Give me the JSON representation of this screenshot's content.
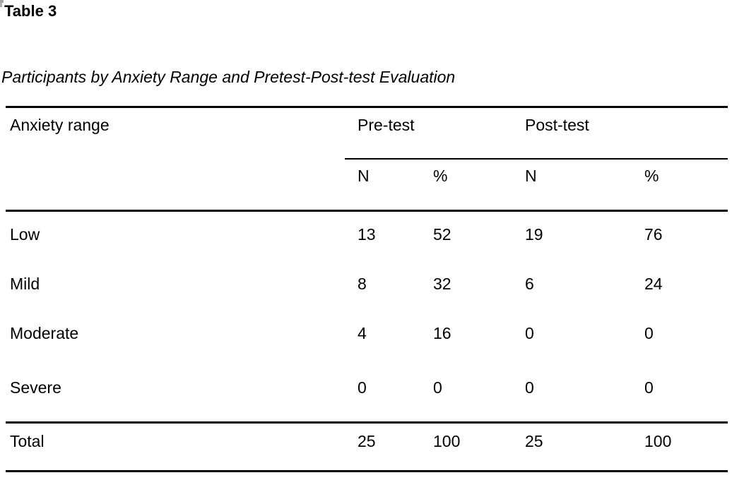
{
  "document": {
    "table_label": "Table 3",
    "caption": "Participants by Anxiety Range and Pretest-Post-test Evaluation"
  },
  "table": {
    "stub_header": "Anxiety range",
    "group_headers": {
      "pretest": "Pre-test",
      "posttest": "Post-test"
    },
    "sub_headers": [
      "N",
      "%",
      "N",
      "%"
    ],
    "rows": [
      {
        "label": "Low",
        "values": [
          "13",
          "52",
          "19",
          "76"
        ]
      },
      {
        "label": "Mild",
        "values": [
          "8",
          "32",
          "6",
          "24"
        ]
      },
      {
        "label": "Moderate",
        "values": [
          "4",
          "16",
          "0",
          "0"
        ]
      },
      {
        "label": "Severe",
        "values": [
          "0",
          "0",
          "0",
          "0"
        ]
      }
    ],
    "total_row": {
      "label": "Total",
      "values": [
        "25",
        "100",
        "25",
        "100"
      ]
    }
  },
  "colors": {
    "background": "#ffffff",
    "text": "#000000",
    "rule": "#000000",
    "corner_artifact": "#a5a5a5"
  }
}
